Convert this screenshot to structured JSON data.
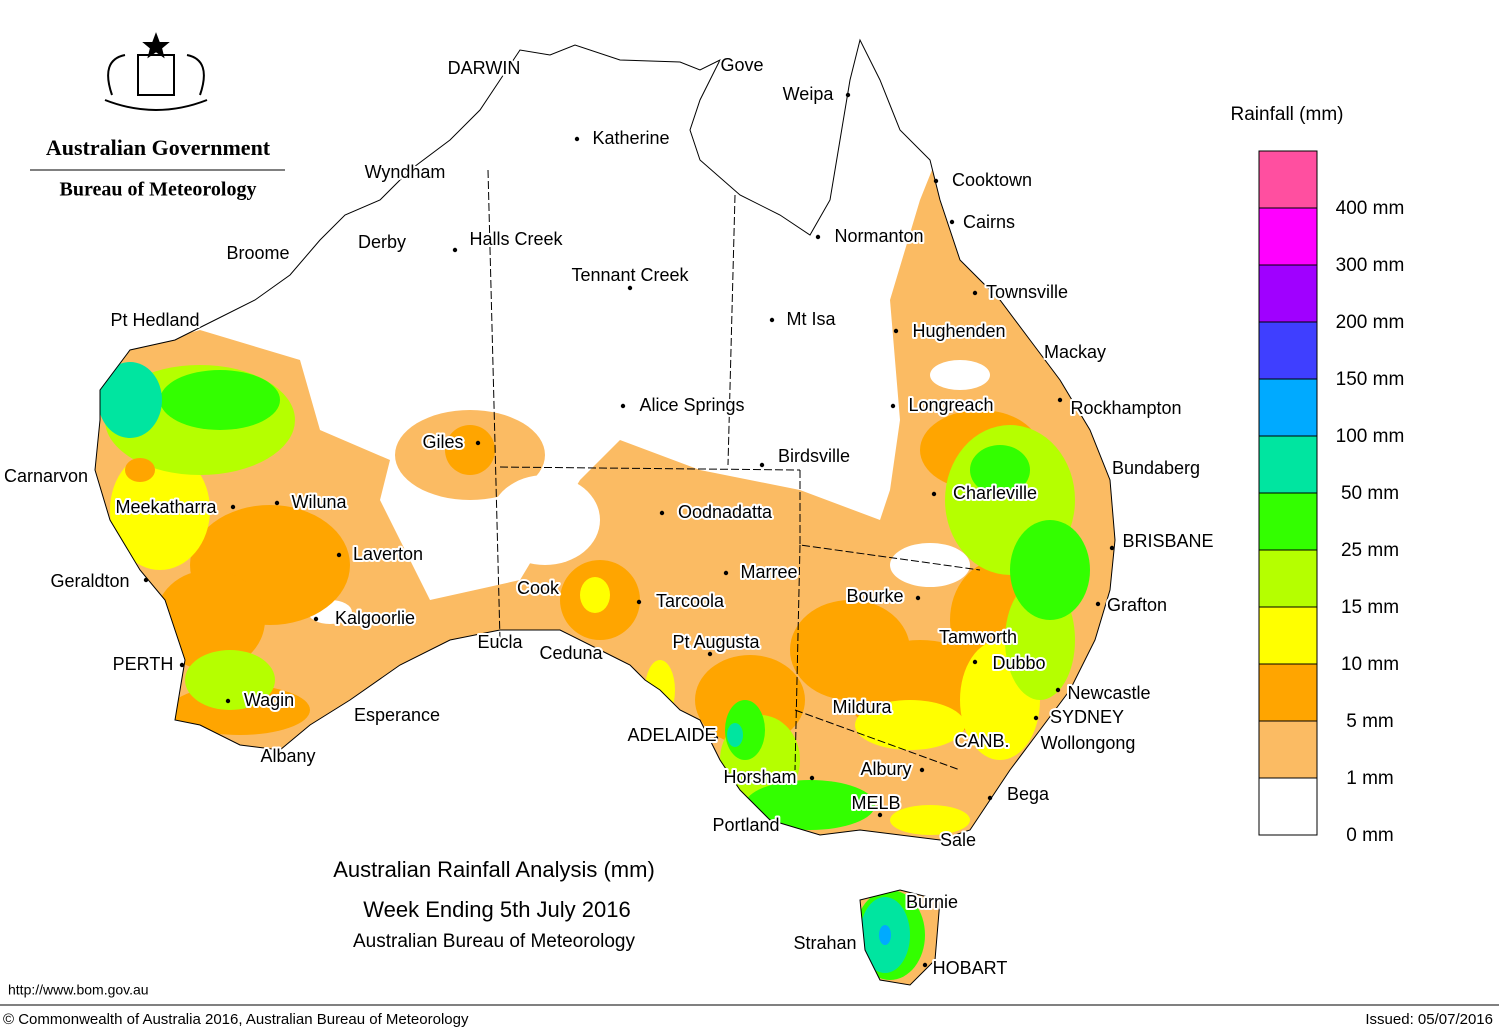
{
  "header": {
    "logo_line1": "Australian Government",
    "logo_line2": "Bureau of Meteorology"
  },
  "title": {
    "line1": "Australian Rainfall Analysis (mm)",
    "line2": "Week Ending 5th July 2016",
    "line3": "Australian Bureau of Meteorology"
  },
  "legend": {
    "title": "Rainfall (mm)",
    "items": [
      {
        "label": "400 mm",
        "color": "#ff4fa0"
      },
      {
        "label": "300 mm",
        "color": "#ff00ff"
      },
      {
        "label": "200 mm",
        "color": "#a000ff"
      },
      {
        "label": "150 mm",
        "color": "#3f3fff"
      },
      {
        "label": "100 mm",
        "color": "#00aaff"
      },
      {
        "label": "50 mm",
        "color": "#00e5a0"
      },
      {
        "label": "25 mm",
        "color": "#33ff00"
      },
      {
        "label": "15 mm",
        "color": "#b5ff00"
      },
      {
        "label": "10 mm",
        "color": "#ffff00"
      },
      {
        "label": "5 mm",
        "color": "#ffa500"
      },
      {
        "label": "1 mm",
        "color": "#fbbb63"
      },
      {
        "label": "0 mm",
        "color": "#ffffff"
      }
    ]
  },
  "cities": [
    "DARWIN",
    "Gove",
    "Weipa",
    "Katherine",
    "Wyndham",
    "Cooktown",
    "Cairns",
    "Derby",
    "Halls Creek",
    "Normanton",
    "Broome",
    "Tennant Creek",
    "Townsville",
    "Pt Hedland",
    "Mt Isa",
    "Hughenden",
    "Mackay",
    "Alice Springs",
    "Longreach",
    "Rockhampton",
    "Giles",
    "Birdsville",
    "Bundaberg",
    "Carnarvon",
    "Charleville",
    "Oodnadatta",
    "Meekatharra",
    "Wiluna",
    "BRISBANE",
    "Laverton",
    "Marree",
    "Geraldton",
    "Tarcoola",
    "Cook",
    "Bourke",
    "Grafton",
    "Kalgoorlie",
    "Eucla",
    "Ceduna",
    "Pt Augusta",
    "Tamworth",
    "Dubbo",
    "PERTH",
    "Newcastle",
    "Wagin",
    "Mildura",
    "Esperance",
    "SYDNEY",
    "ADELAIDE",
    "CANB.",
    "Wollongong",
    "Albany",
    "Horsham",
    "Albury",
    "Bega",
    "MELB",
    "Portland",
    "Sale",
    "Burnie",
    "Strahan",
    "HOBART"
  ],
  "footer": {
    "url": "http://www.bom.gov.au",
    "copyright": "© Commonwealth of Australia 2016, Australian Bureau of Meteorology",
    "issued": "Issued: 05/07/2016"
  }
}
